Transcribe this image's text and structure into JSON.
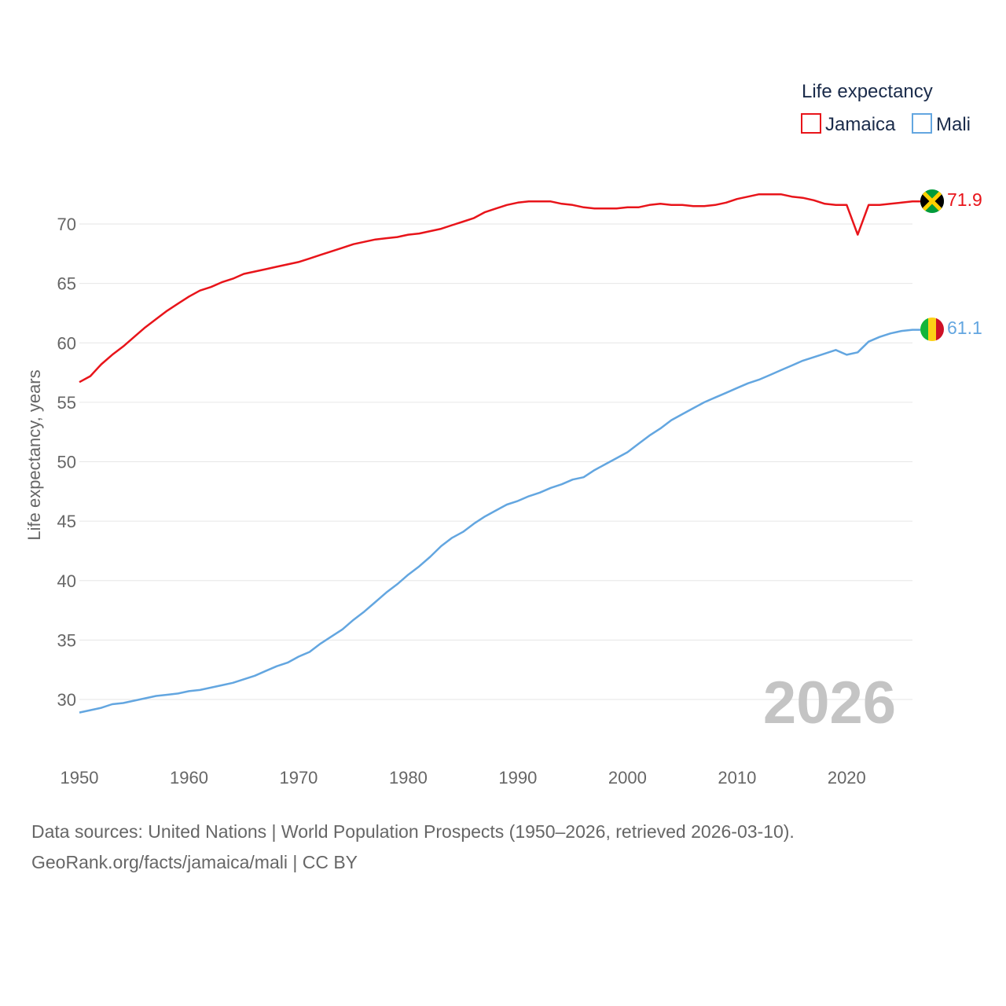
{
  "chart_data": {
    "type": "line",
    "title": "",
    "xlabel": "",
    "ylabel": "Life expectancy, years",
    "xlim": [
      1950,
      2026
    ],
    "ylim": [
      26,
      73
    ],
    "x_ticks": [
      1950,
      1960,
      1970,
      1980,
      1990,
      2000,
      2010,
      2020
    ],
    "y_ticks": [
      30,
      35,
      40,
      45,
      50,
      55,
      60,
      65,
      70
    ],
    "x": [
      1950,
      1951,
      1952,
      1953,
      1954,
      1955,
      1956,
      1957,
      1958,
      1959,
      1960,
      1961,
      1962,
      1963,
      1964,
      1965,
      1966,
      1967,
      1968,
      1969,
      1970,
      1971,
      1972,
      1973,
      1974,
      1975,
      1976,
      1977,
      1978,
      1979,
      1980,
      1981,
      1982,
      1983,
      1984,
      1985,
      1986,
      1987,
      1988,
      1989,
      1990,
      1991,
      1992,
      1993,
      1994,
      1995,
      1996,
      1997,
      1998,
      1999,
      2000,
      2001,
      2002,
      2003,
      2004,
      2005,
      2006,
      2007,
      2008,
      2009,
      2010,
      2011,
      2012,
      2013,
      2014,
      2015,
      2016,
      2017,
      2018,
      2019,
      2020,
      2021,
      2022,
      2023,
      2024,
      2025,
      2026
    ],
    "series": [
      {
        "name": "Jamaica",
        "color": "#e8141a",
        "end_label": "71.9",
        "values": [
          56.7,
          57.2,
          58.2,
          59.0,
          59.7,
          60.5,
          61.3,
          62.0,
          62.7,
          63.3,
          63.9,
          64.4,
          64.7,
          65.1,
          65.4,
          65.8,
          66.0,
          66.2,
          66.4,
          66.6,
          66.8,
          67.1,
          67.4,
          67.7,
          68.0,
          68.3,
          68.5,
          68.7,
          68.8,
          68.9,
          69.1,
          69.2,
          69.4,
          69.6,
          69.9,
          70.2,
          70.5,
          71.0,
          71.3,
          71.6,
          71.8,
          71.9,
          71.9,
          71.9,
          71.7,
          71.6,
          71.4,
          71.3,
          71.3,
          71.3,
          71.4,
          71.4,
          71.6,
          71.7,
          71.6,
          71.6,
          71.5,
          71.5,
          71.6,
          71.8,
          72.1,
          72.3,
          72.5,
          72.5,
          72.5,
          72.3,
          72.2,
          72.0,
          71.7,
          71.6,
          71.6,
          69.1,
          71.6,
          71.6,
          71.7,
          71.8,
          71.9
        ]
      },
      {
        "name": "Mali",
        "color": "#63a6e0",
        "end_label": "61.1",
        "values": [
          28.9,
          29.1,
          29.3,
          29.6,
          29.7,
          29.9,
          30.1,
          30.3,
          30.4,
          30.5,
          30.7,
          30.8,
          31.0,
          31.2,
          31.4,
          31.7,
          32.0,
          32.4,
          32.8,
          33.1,
          33.6,
          34.0,
          34.7,
          35.3,
          35.9,
          36.7,
          37.4,
          38.2,
          39.0,
          39.7,
          40.5,
          41.2,
          42.0,
          42.9,
          43.6,
          44.1,
          44.8,
          45.4,
          45.9,
          46.4,
          46.7,
          47.1,
          47.4,
          47.8,
          48.1,
          48.5,
          48.7,
          49.3,
          49.8,
          50.3,
          50.8,
          51.5,
          52.2,
          52.8,
          53.5,
          54.0,
          54.5,
          55.0,
          55.4,
          55.8,
          56.2,
          56.6,
          56.9,
          57.3,
          57.7,
          58.1,
          58.5,
          58.8,
          59.1,
          59.4,
          59.0,
          59.2,
          60.1,
          60.5,
          60.8,
          61.0,
          61.1
        ]
      }
    ],
    "legend": {
      "title": "Life expectancy",
      "position": "top-right"
    },
    "year_watermark": "2026",
    "grid": true
  },
  "footer": {
    "line1": "Data sources: United Nations | World Population Prospects (1950–2026, retrieved 2026-03-10).",
    "line2": "GeoRank.org/facts/jamaica/mali | CC BY"
  },
  "flags": {
    "jamaica": {
      "green": "#009b3a",
      "gold": "#fed100",
      "black": "#000000"
    },
    "mali": {
      "green": "#14b53a",
      "gold": "#fcd116",
      "red": "#ce1126"
    }
  },
  "colors": {
    "grid": "#e6e6e6",
    "tick": "#666666",
    "legend_text": "#1a2b4a",
    "watermark": "#c4c4c4"
  }
}
